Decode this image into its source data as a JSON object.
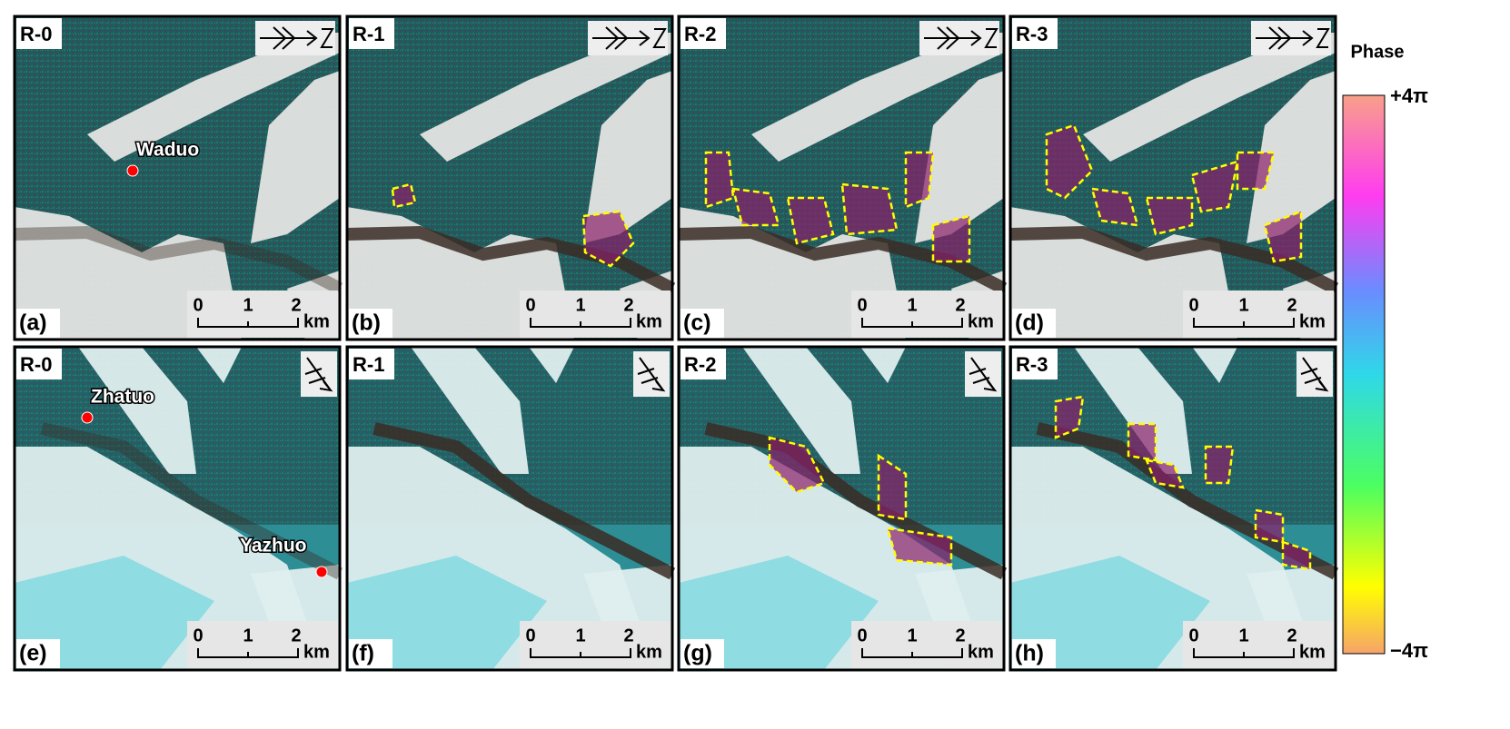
{
  "colorbar": {
    "title": "Phase",
    "max": "+4π",
    "min": "−4π"
  },
  "scale_bar": [
    "0",
    "1",
    "2",
    "km"
  ],
  "panels": [
    {
      "region": "R-0",
      "label": "(a)",
      "places": [
        "Waduo"
      ]
    },
    {
      "region": "R-1",
      "label": "(b)",
      "places": []
    },
    {
      "region": "R-2",
      "label": "(c)",
      "places": []
    },
    {
      "region": "R-3",
      "label": "(d)",
      "places": []
    },
    {
      "region": "R-0",
      "label": "(e)",
      "places": [
        "Zhatuo",
        "Yazhuo"
      ]
    },
    {
      "region": "R-1",
      "label": "(f)",
      "places": []
    },
    {
      "region": "R-2",
      "label": "(g)",
      "places": []
    },
    {
      "region": "R-3",
      "label": "(h)",
      "places": []
    }
  ]
}
